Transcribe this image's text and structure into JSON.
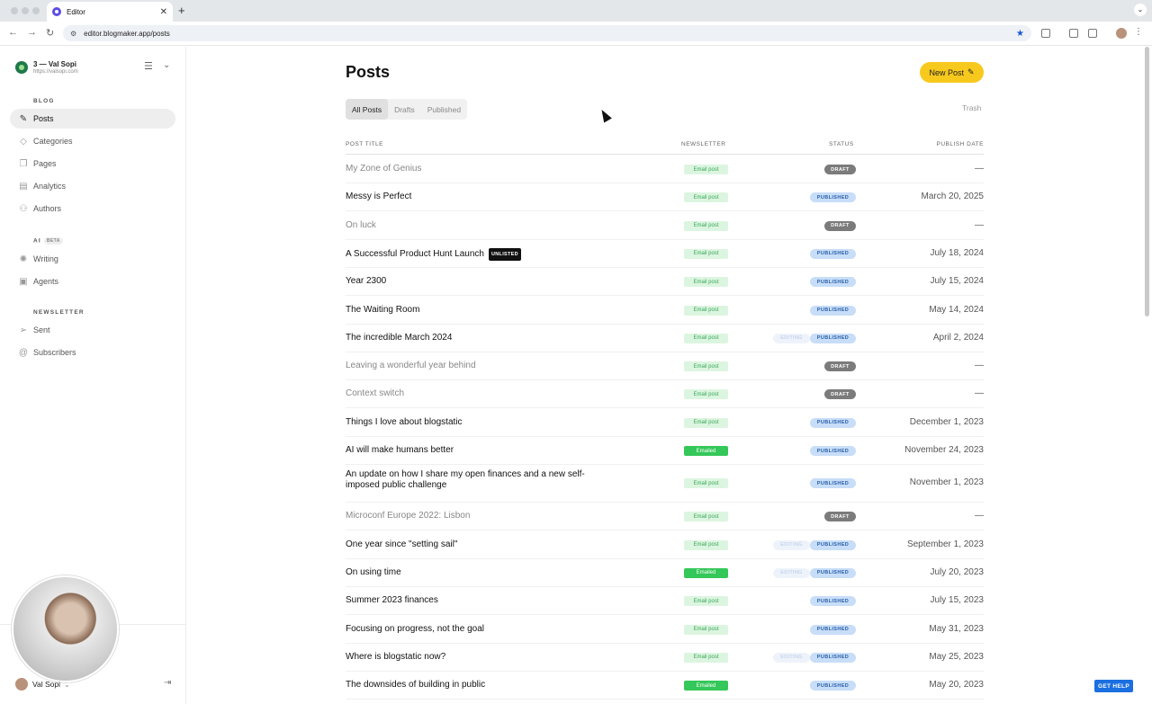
{
  "browser": {
    "tab_title": "Editor",
    "url": "editor.blogmaker.app/posts"
  },
  "sidebar": {
    "site_name": "3 — Val Sopi",
    "site_url": "https://valsopi.com",
    "sections": {
      "blog": "BLOG",
      "ai": "AI",
      "ai_badge": "BETA",
      "newsletter": "NEWSLETTER"
    },
    "items": {
      "posts": "Posts",
      "categories": "Categories",
      "pages": "Pages",
      "analytics": "Analytics",
      "authors": "Authors",
      "writing": "Writing",
      "agents": "Agents",
      "sent": "Sent",
      "subscribers": "Subscribers"
    },
    "user_name": "Val Sopi"
  },
  "main": {
    "title": "Posts",
    "new_post_label": "New Post",
    "filters": [
      "All Posts",
      "Drafts",
      "Published"
    ],
    "trash_label": "Trash",
    "columns": {
      "title": "POST TITLE",
      "newsletter": "NEWSLETTER",
      "status": "STATUS",
      "date": "PUBLISH DATE"
    },
    "unlisted_label": "UNLISTED",
    "editing_label": "EDITING",
    "posts": [
      {
        "title": "My Zone of Genius",
        "newsletter": "Email post",
        "status": "DRAFT",
        "date": "—"
      },
      {
        "title": "Messy is Perfect",
        "newsletter": "Email post",
        "status": "PUBLISHED",
        "date": "March 20, 2025"
      },
      {
        "title": "On luck",
        "newsletter": "Email post",
        "status": "DRAFT",
        "date": "—"
      },
      {
        "title": "A Successful Product Hunt Launch",
        "newsletter": "Email post",
        "status": "PUBLISHED",
        "date": "July 18, 2024",
        "unlisted": true
      },
      {
        "title": "Year 2300",
        "newsletter": "Email post",
        "status": "PUBLISHED",
        "date": "July 15, 2024"
      },
      {
        "title": "The Waiting Room",
        "newsletter": "Email post",
        "status": "PUBLISHED",
        "date": "May 14, 2024"
      },
      {
        "title": "The incredible March 2024",
        "newsletter": "Email post",
        "status": "PUBLISHED",
        "date": "April 2, 2024",
        "editing": true
      },
      {
        "title": "Leaving a wonderful year behind",
        "newsletter": "Email post",
        "status": "DRAFT",
        "date": "—"
      },
      {
        "title": "Context switch",
        "newsletter": "Email post",
        "status": "DRAFT",
        "date": "—"
      },
      {
        "title": "Things I love about blogstatic",
        "newsletter": "Email post",
        "status": "PUBLISHED",
        "date": "December 1, 2023"
      },
      {
        "title": "AI will make humans better",
        "newsletter": "Emailed",
        "status": "PUBLISHED",
        "date": "November 24, 2023"
      },
      {
        "title": "An update on how I share my open finances and a new self-imposed public challenge",
        "newsletter": "Email post",
        "status": "PUBLISHED",
        "date": "November 1, 2023",
        "tall": true
      },
      {
        "title": "Microconf Europe 2022: Lisbon",
        "newsletter": "Email post",
        "status": "DRAFT",
        "date": "—"
      },
      {
        "title": "One year since \"setting sail\"",
        "newsletter": "Email post",
        "status": "PUBLISHED",
        "date": "September 1, 2023",
        "editing": true
      },
      {
        "title": "On using time",
        "newsletter": "Emailed",
        "status": "PUBLISHED",
        "date": "July 20, 2023",
        "editing": true
      },
      {
        "title": "Summer 2023 finances",
        "newsletter": "Email post",
        "status": "PUBLISHED",
        "date": "July 15, 2023"
      },
      {
        "title": "Focusing on progress, not the goal",
        "newsletter": "Email post",
        "status": "PUBLISHED",
        "date": "May 31, 2023"
      },
      {
        "title": "Where is blogstatic now?",
        "newsletter": "Email post",
        "status": "PUBLISHED",
        "date": "May 25, 2023",
        "editing": true
      },
      {
        "title": "The downsides of building in public",
        "newsletter": "Emailed",
        "status": "PUBLISHED",
        "date": "May 20, 2023"
      }
    ]
  },
  "help_label": "GET HELP",
  "colors": {
    "accent_yellow": "#f7c91d",
    "published_badge": "#c7ddf8",
    "draft_badge": "#7b7b7b",
    "emailed_badge": "#34c759",
    "email_post_badge": "#dcf5e0",
    "help_blue": "#1b6fe0"
  }
}
